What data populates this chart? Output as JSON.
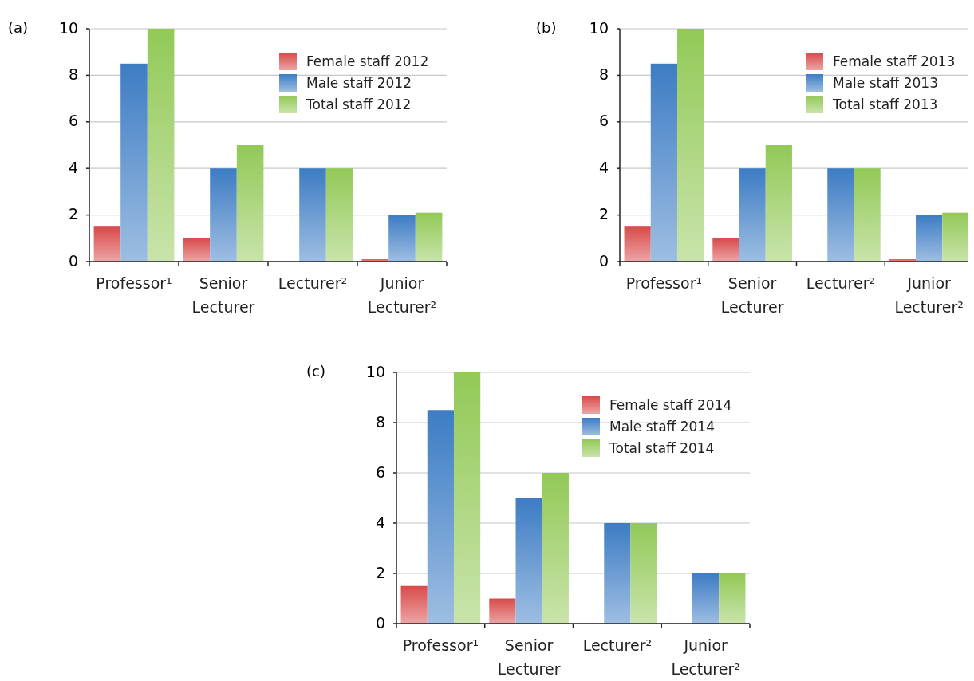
{
  "chart_data": [
    {
      "type": "bar",
      "title": "(a)",
      "categories": [
        "Professor¹",
        "Senior Lecturer",
        "Lecturer²",
        "Junior Lecturer²"
      ],
      "series": [
        {
          "name": "Female staff 2012",
          "color": "#d94a4a",
          "values": [
            1.5,
            1,
            0,
            0.1
          ]
        },
        {
          "name": "Male staff 2012",
          "color": "#3d7cc4",
          "values": [
            8.5,
            4,
            4,
            2
          ]
        },
        {
          "name": "Total staff 2012",
          "color": "#92c957",
          "values": [
            10,
            5,
            4,
            2.1
          ]
        }
      ],
      "ylim": [
        0,
        10
      ],
      "yticks": [
        0,
        2,
        4,
        6,
        8,
        10
      ],
      "grid": "y",
      "legend": "top right"
    },
    {
      "type": "bar",
      "title": "(b)",
      "categories": [
        "Professor¹",
        "Senior Lecturer",
        "Lecturer²",
        "Junior Lecturer²"
      ],
      "series": [
        {
          "name": "Female staff 2013",
          "color": "#d94a4a",
          "values": [
            1.5,
            1,
            0,
            0.1
          ]
        },
        {
          "name": "Male staff 2013",
          "color": "#3d7cc4",
          "values": [
            8.5,
            4,
            4,
            2
          ]
        },
        {
          "name": "Total staff 2013",
          "color": "#92c957",
          "values": [
            10,
            5,
            4,
            2.1
          ]
        }
      ],
      "ylim": [
        0,
        10
      ],
      "yticks": [
        0,
        2,
        4,
        6,
        8,
        10
      ],
      "grid": "y",
      "legend": "top right"
    },
    {
      "type": "bar",
      "title": "(c)",
      "categories": [
        "Professor¹",
        "Senior Lecturer",
        "Lecturer²",
        "Junior Lecturer²"
      ],
      "series": [
        {
          "name": "Female staff 2014",
          "color": "#d94a4a",
          "values": [
            1.5,
            1,
            0,
            0
          ]
        },
        {
          "name": "Male staff 2014",
          "color": "#3d7cc4",
          "values": [
            8.5,
            5,
            4,
            2
          ]
        },
        {
          "name": "Total staff 2014",
          "color": "#92c957",
          "values": [
            10,
            6,
            4,
            2
          ]
        }
      ],
      "ylim": [
        0,
        10
      ],
      "yticks": [
        0,
        2,
        4,
        6,
        8,
        10
      ],
      "grid": "y",
      "legend": "top right"
    }
  ]
}
